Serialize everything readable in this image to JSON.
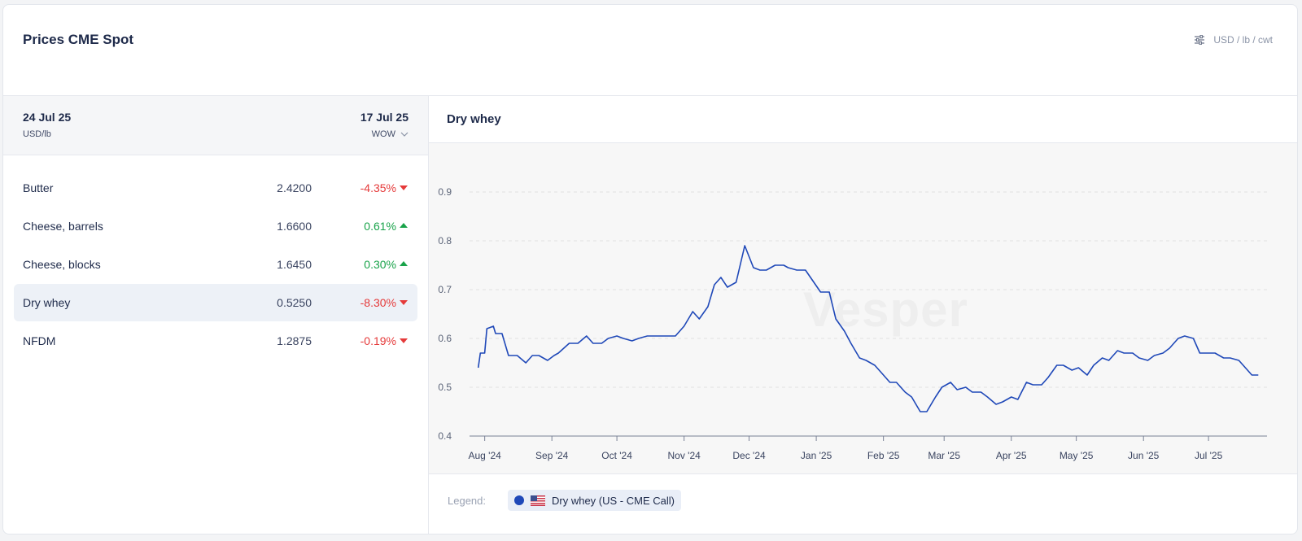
{
  "card": {
    "title": "Prices CME Spot",
    "unit_toggle": {
      "icon": "sliders-icon",
      "label": "USD / lb / cwt"
    }
  },
  "left": {
    "current_date": "24 Jul 25",
    "unit": "USD/lb",
    "compare_date": "17 Jul 25",
    "period": "WOW",
    "rows": [
      {
        "name": "Butter",
        "value": "2.4200",
        "change": "-4.35%",
        "direction": "down"
      },
      {
        "name": "Cheese, barrels",
        "value": "1.6600",
        "change": "0.61%",
        "direction": "up"
      },
      {
        "name": "Cheese, blocks",
        "value": "1.6450",
        "change": "0.30%",
        "direction": "up"
      },
      {
        "name": "Dry whey",
        "value": "0.5250",
        "change": "-8.30%",
        "direction": "down",
        "selected": true
      },
      {
        "name": "NFDM",
        "value": "1.2875",
        "change": "-0.19%",
        "direction": "down"
      }
    ]
  },
  "chart_panel": {
    "title": "Dry whey",
    "watermark": "Vesper",
    "legend_label": "Legend:",
    "legend_item": "Dry whey (US - CME Call)"
  },
  "colors": {
    "line": "#1f48b8",
    "negative": "#e53a3a",
    "positive": "#19a34a",
    "selected_row": "#edf1f7"
  },
  "chart_data": {
    "type": "line",
    "title": "Dry whey",
    "xlabel": "",
    "ylabel": "",
    "ylim": [
      0.4,
      0.9
    ],
    "yticks": [
      0.4,
      0.5,
      0.6,
      0.7,
      0.8,
      0.9
    ],
    "grid": true,
    "legend": "bottom",
    "x_tick_labels": [
      "Aug '24",
      "Sep '24",
      "Oct '24",
      "Nov '24",
      "Dec '24",
      "Jan '25",
      "Feb '25",
      "Mar '25",
      "Apr '25",
      "May '25",
      "Jun '25",
      "Jul '25"
    ],
    "series": [
      {
        "name": "Dry whey (US - CME Call)",
        "x": [
          "2024-07-29",
          "2024-07-30",
          "2024-08-01",
          "2024-08-02",
          "2024-08-05",
          "2024-08-06",
          "2024-08-09",
          "2024-08-12",
          "2024-08-16",
          "2024-08-20",
          "2024-08-23",
          "2024-08-26",
          "2024-08-30",
          "2024-09-02",
          "2024-09-04",
          "2024-09-09",
          "2024-09-13",
          "2024-09-17",
          "2024-09-20",
          "2024-09-24",
          "2024-09-27",
          "2024-10-01",
          "2024-10-04",
          "2024-10-08",
          "2024-10-11",
          "2024-10-15",
          "2024-10-18",
          "2024-10-22",
          "2024-10-25",
          "2024-10-28",
          "2024-11-01",
          "2024-11-05",
          "2024-11-08",
          "2024-11-12",
          "2024-11-15",
          "2024-11-18",
          "2024-11-21",
          "2024-11-25",
          "2024-11-29",
          "2024-12-03",
          "2024-12-06",
          "2024-12-09",
          "2024-12-13",
          "2024-12-17",
          "2024-12-19",
          "2024-12-23",
          "2024-12-27",
          "2025-01-03",
          "2025-01-07",
          "2025-01-10",
          "2025-01-14",
          "2025-01-17",
          "2025-01-21",
          "2025-01-24",
          "2025-01-28",
          "2025-01-31",
          "2025-02-04",
          "2025-02-07",
          "2025-02-11",
          "2025-02-14",
          "2025-02-18",
          "2025-02-21",
          "2025-02-25",
          "2025-02-28",
          "2025-03-04",
          "2025-03-07",
          "2025-03-11",
          "2025-03-14",
          "2025-03-18",
          "2025-03-21",
          "2025-03-25",
          "2025-03-28",
          "2025-04-01",
          "2025-04-04",
          "2025-04-08",
          "2025-04-11",
          "2025-04-15",
          "2025-04-18",
          "2025-04-22",
          "2025-04-25",
          "2025-04-29",
          "2025-05-02",
          "2025-05-06",
          "2025-05-09",
          "2025-05-13",
          "2025-05-16",
          "2025-05-20",
          "2025-05-23",
          "2025-05-27",
          "2025-05-30",
          "2025-06-03",
          "2025-06-06",
          "2025-06-10",
          "2025-06-13",
          "2025-06-17",
          "2025-06-20",
          "2025-06-24",
          "2025-06-27",
          "2025-07-01",
          "2025-07-04",
          "2025-07-08",
          "2025-07-11",
          "2025-07-15",
          "2025-07-18",
          "2025-07-21",
          "2025-07-24"
        ],
        "values": [
          0.54,
          0.57,
          0.57,
          0.62,
          0.625,
          0.61,
          0.61,
          0.565,
          0.565,
          0.55,
          0.565,
          0.565,
          0.555,
          0.565,
          0.57,
          0.59,
          0.59,
          0.605,
          0.59,
          0.59,
          0.6,
          0.605,
          0.6,
          0.595,
          0.6,
          0.605,
          0.605,
          0.605,
          0.605,
          0.605,
          0.625,
          0.655,
          0.64,
          0.665,
          0.71,
          0.725,
          0.705,
          0.715,
          0.79,
          0.745,
          0.74,
          0.74,
          0.75,
          0.75,
          0.745,
          0.74,
          0.74,
          0.695,
          0.695,
          0.64,
          0.615,
          0.59,
          0.56,
          0.555,
          0.545,
          0.53,
          0.51,
          0.51,
          0.49,
          0.48,
          0.45,
          0.45,
          0.48,
          0.5,
          0.51,
          0.495,
          0.5,
          0.49,
          0.49,
          0.48,
          0.465,
          0.47,
          0.48,
          0.475,
          0.51,
          0.505,
          0.505,
          0.52,
          0.545,
          0.545,
          0.535,
          0.54,
          0.525,
          0.545,
          0.56,
          0.555,
          0.575,
          0.57,
          0.57,
          0.56,
          0.555,
          0.565,
          0.57,
          0.58,
          0.6,
          0.605,
          0.6,
          0.57,
          0.57,
          0.57,
          0.56,
          0.56,
          0.555,
          0.54,
          0.525,
          0.525
        ]
      }
    ]
  }
}
